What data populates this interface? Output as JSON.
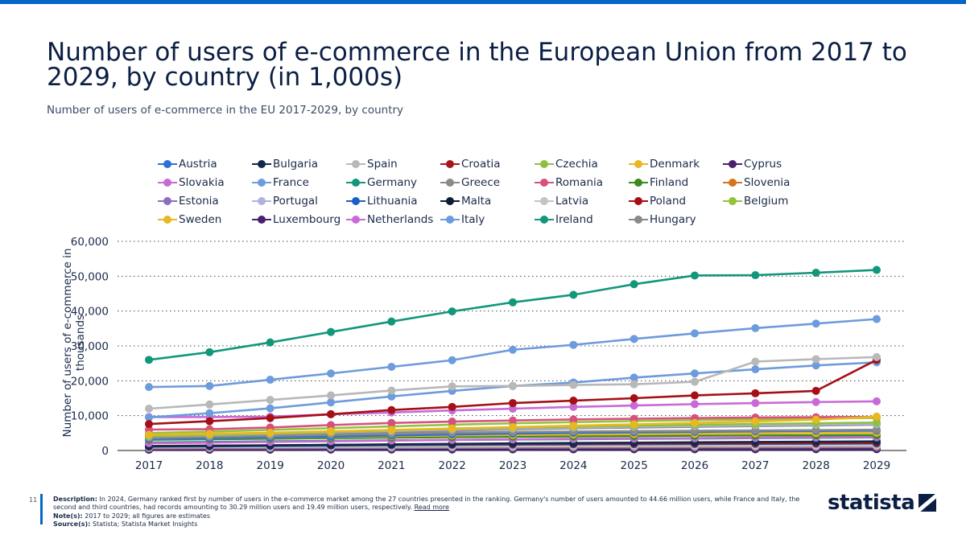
{
  "header": {
    "title": "Number of users of e-commerce in the European Union from 2017 to 2029, by country (in 1,000s)",
    "subtitle": "Number of users of e-commerce in the EU 2017-2029, by country"
  },
  "footer": {
    "page_number": "11",
    "description_label": "Description:",
    "description": "In 2024, Germany ranked first by number of users in the e-commerce market among the 27 countries presented in the ranking. Germany's number of users amounted to 44.66 million users, while France and Italy, the second and third countries, had records amounting to 30.29 million users and 19.49 million users, respectively.",
    "read_more": "Read more",
    "notes_label": "Note(s):",
    "notes": "2017 to 2029; all figures are estimates",
    "source_label": "Source(s):",
    "source": "Statista; Statista Market Insights",
    "logo_text": "statista"
  },
  "chart_data": {
    "type": "line",
    "ylabel": "Number of users of e-commerce in thousands",
    "xlabel": "",
    "ylim": [
      0,
      60000
    ],
    "yticks": [
      0,
      10000,
      20000,
      30000,
      40000,
      50000,
      60000
    ],
    "ytick_labels": [
      "0",
      "10,000",
      "20,000",
      "30,000",
      "40,000",
      "50,000",
      "60,000"
    ],
    "grid": "horizontal-dotted",
    "legend_position": "top",
    "x": [
      "2017",
      "2018",
      "2019",
      "2020",
      "2021",
      "2022",
      "2023",
      "2024",
      "2025",
      "2026",
      "2027",
      "2028",
      "2029"
    ],
    "series": [
      {
        "name": "Austria",
        "color": "#2e6fd6",
        "values": [
          3300,
          3500,
          3750,
          4000,
          4300,
          4600,
          4850,
          5050,
          5200,
          5350,
          5500,
          5600,
          5700
        ]
      },
      {
        "name": "Bulgaria",
        "color": "#13284a",
        "values": [
          1200,
          1320,
          1450,
          1600,
          1750,
          1900,
          2050,
          2150,
          2250,
          2350,
          2450,
          2520,
          2600
        ]
      },
      {
        "name": "Spain",
        "color": "#b8b8b8",
        "values": [
          12000,
          13200,
          14500,
          15800,
          17200,
          18400,
          18500,
          18800,
          19000,
          19700,
          25500,
          26200,
          26800
        ]
      },
      {
        "name": "Croatia",
        "color": "#a8161b",
        "values": [
          1300,
          1400,
          1500,
          1600,
          1700,
          1800,
          1900,
          1950,
          2000,
          2050,
          2100,
          2150,
          2200
        ]
      },
      {
        "name": "Czechia",
        "color": "#8fc13e",
        "values": [
          4200,
          4500,
          4900,
          5300,
          5800,
          6200,
          6550,
          6850,
          7100,
          7350,
          7600,
          7800,
          8000
        ]
      },
      {
        "name": "Denmark",
        "color": "#e8b820",
        "values": [
          3300,
          3500,
          3700,
          3900,
          4100,
          4300,
          4450,
          4600,
          4700,
          4800,
          4900,
          5000,
          5100
        ]
      },
      {
        "name": "Cyprus",
        "color": "#4a2170",
        "values": [
          300,
          330,
          360,
          390,
          420,
          450,
          480,
          500,
          520,
          540,
          560,
          580,
          600
        ]
      },
      {
        "name": "Slovakia",
        "color": "#c86ad6",
        "values": [
          2100,
          2250,
          2450,
          2650,
          2850,
          3050,
          3200,
          3350,
          3450,
          3550,
          3650,
          3750,
          3850
        ]
      },
      {
        "name": "France",
        "color": "#6d9bdc",
        "values": [
          18200,
          18500,
          20300,
          22100,
          24000,
          25900,
          28900,
          30300,
          32000,
          33600,
          35100,
          36400,
          37700
        ]
      },
      {
        "name": "Germany",
        "color": "#12977a",
        "values": [
          26000,
          28200,
          31000,
          34000,
          37000,
          39900,
          42500,
          44660,
          47700,
          50200,
          50300,
          51000,
          51800
        ]
      },
      {
        "name": "Greece",
        "color": "#8a8a8a",
        "values": [
          3800,
          4100,
          4500,
          4900,
          5300,
          5700,
          6050,
          6350,
          6600,
          6800,
          7000,
          7200,
          7400
        ]
      },
      {
        "name": "Romania",
        "color": "#d6517d",
        "values": [
          6000,
          6100,
          6600,
          7300,
          7900,
          8300,
          8600,
          8900,
          9100,
          9300,
          9450,
          9550,
          9650
        ]
      },
      {
        "name": "Finland",
        "color": "#3c8a1e",
        "values": [
          3100,
          3250,
          3400,
          3550,
          3700,
          3850,
          3950,
          4050,
          4150,
          4250,
          4300,
          4350,
          4400
        ]
      },
      {
        "name": "Slovenia",
        "color": "#d6731e",
        "values": [
          800,
          850,
          900,
          950,
          1000,
          1050,
          1100,
          1130,
          1160,
          1190,
          1220,
          1250,
          1280
        ]
      },
      {
        "name": "Estonia",
        "color": "#8a6fbf",
        "values": [
          600,
          640,
          680,
          720,
          760,
          800,
          830,
          860,
          880,
          900,
          920,
          940,
          960
        ]
      },
      {
        "name": "Portugal",
        "color": "#aeb2e0",
        "values": [
          4100,
          4400,
          4800,
          5200,
          5600,
          6000,
          6300,
          6600,
          6850,
          7050,
          7250,
          7450,
          7600
        ]
      },
      {
        "name": "Lithuania",
        "color": "#1a5fc4",
        "values": [
          1100,
          1200,
          1300,
          1400,
          1500,
          1600,
          1680,
          1750,
          1810,
          1860,
          1910,
          1950,
          1990
        ]
      },
      {
        "name": "Malta",
        "color": "#0c1c33",
        "values": [
          200,
          220,
          240,
          260,
          280,
          300,
          320,
          330,
          340,
          350,
          360,
          370,
          380
        ]
      },
      {
        "name": "Latvia",
        "color": "#c4c4c4",
        "values": [
          900,
          950,
          1000,
          1050,
          1100,
          1150,
          1200,
          1240,
          1270,
          1300,
          1330,
          1360,
          1390
        ]
      },
      {
        "name": "Poland",
        "color": "#a50f15",
        "values": [
          7600,
          8400,
          9300,
          10400,
          11600,
          12500,
          13600,
          14300,
          15000,
          15800,
          16400,
          17100,
          26000
        ]
      },
      {
        "name": "Belgium",
        "color": "#95c23d",
        "values": [
          5000,
          5400,
          5900,
          6400,
          6900,
          7400,
          7800,
          8150,
          8450,
          8700,
          8950,
          9150,
          9350
        ]
      },
      {
        "name": "Sweden",
        "color": "#e8b820",
        "values": [
          4500,
          4800,
          5100,
          5500,
          5900,
          6300,
          6700,
          7100,
          7500,
          7900,
          8350,
          8850,
          9700
        ]
      },
      {
        "name": "Luxembourg",
        "color": "#4a2170",
        "values": [
          250,
          270,
          290,
          310,
          330,
          350,
          370,
          385,
          400,
          410,
          420,
          430,
          440
        ]
      },
      {
        "name": "Netherlands",
        "color": "#c86ad6",
        "values": [
          9600,
          9600,
          9700,
          10400,
          10900,
          11500,
          12000,
          12500,
          12900,
          13300,
          13600,
          13900,
          14100
        ]
      },
      {
        "name": "Italy",
        "color": "#6d9bdc",
        "values": [
          9500,
          10700,
          12100,
          13800,
          15500,
          17100,
          18500,
          19490,
          20900,
          22100,
          23300,
          24400,
          25300
        ]
      },
      {
        "name": "Ireland",
        "color": "#12977a",
        "values": [
          2300,
          2450,
          2600,
          2750,
          2900,
          3050,
          3150,
          3250,
          3350,
          3450,
          3550,
          3650,
          3750
        ]
      },
      {
        "name": "Hungary",
        "color": "#8a8a8a",
        "values": [
          3600,
          3900,
          4200,
          4500,
          4800,
          5100,
          5300,
          5450,
          5550,
          5650,
          5750,
          5850,
          5950
        ]
      }
    ]
  }
}
